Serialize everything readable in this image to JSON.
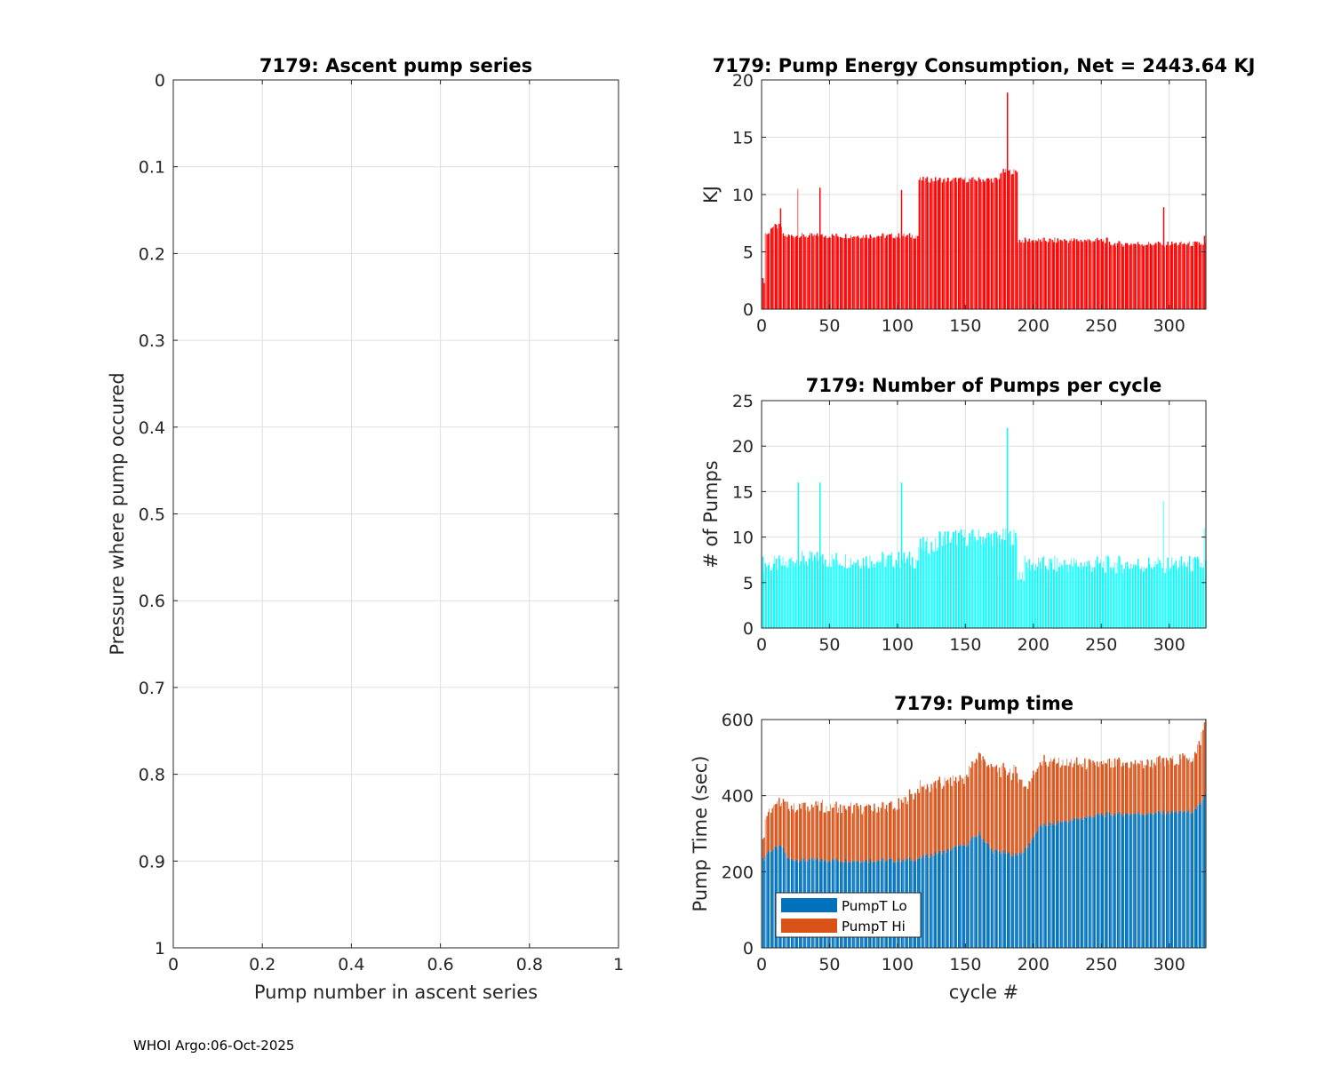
{
  "footer": "WHOI Argo:06-Oct-2025",
  "colors": {
    "energy": "#ff0000",
    "pumps": "#00ffff",
    "lo": "#0072bd",
    "hi": "#d95319"
  },
  "chart_data": [
    {
      "id": "ascent",
      "type": "scatter",
      "title": "7179: Ascent pump series",
      "xlabel": "Pump number in ascent series",
      "ylabel": "Pressure where pump occured",
      "xlim": [
        0,
        1
      ],
      "ylim": [
        0,
        1
      ],
      "y_reversed": true,
      "xticks": [
        "0",
        "0.2",
        "0.4",
        "0.6",
        "0.8",
        "1"
      ],
      "yticks": [
        "0",
        "0.1",
        "0.2",
        "0.3",
        "0.4",
        "0.5",
        "0.6",
        "0.7",
        "0.8",
        "0.9",
        "1"
      ],
      "grid": true,
      "points": []
    },
    {
      "id": "energy",
      "type": "bar",
      "title": "7179: Pump Energy Consumption,  Net = 2443.64 KJ",
      "xlabel": "",
      "ylabel": "KJ",
      "xlim": [
        0,
        327
      ],
      "ylim": [
        0,
        20
      ],
      "xticks": [
        "0",
        "50",
        "100",
        "150",
        "200",
        "250",
        "300"
      ],
      "yticks": [
        "0",
        "5",
        "10",
        "15",
        "20"
      ],
      "grid": true,
      "segments": [
        {
          "from": 1,
          "to": 2,
          "value": 2.5
        },
        {
          "from": 3,
          "to": 6,
          "value": 6.6
        },
        {
          "from": 7,
          "to": 15,
          "value": 7.2
        },
        {
          "from": 16,
          "to": 115,
          "value": 6.4
        },
        {
          "from": 116,
          "to": 175,
          "value": 11.3
        },
        {
          "from": 176,
          "to": 188,
          "value": 12.0
        },
        {
          "from": 189,
          "to": 255,
          "value": 6.0
        },
        {
          "from": 256,
          "to": 327,
          "value": 5.7
        }
      ],
      "spikes": [
        {
          "x": 14,
          "value": 8.8
        },
        {
          "x": 27,
          "value": 10.5
        },
        {
          "x": 43,
          "value": 10.6
        },
        {
          "x": 103,
          "value": 10.4
        },
        {
          "x": 181,
          "value": 18.9
        },
        {
          "x": 296,
          "value": 8.9
        },
        {
          "x": 326,
          "value": 6.4
        }
      ]
    },
    {
      "id": "pumps",
      "type": "bar",
      "title": "7179: Number of Pumps per cycle",
      "xlabel": "",
      "ylabel": "# of Pumps",
      "xlim": [
        0,
        327
      ],
      "ylim": [
        0,
        25
      ],
      "xticks": [
        "0",
        "50",
        "100",
        "150",
        "200",
        "250",
        "300"
      ],
      "yticks": [
        "0",
        "5",
        "10",
        "15",
        "20",
        "25"
      ],
      "grid": true,
      "segments": [
        {
          "from": 1,
          "to": 10,
          "value": 7
        },
        {
          "from": 11,
          "to": 20,
          "value": 7
        },
        {
          "from": 21,
          "to": 115,
          "value": 7.5
        },
        {
          "from": 116,
          "to": 130,
          "value": 9
        },
        {
          "from": 131,
          "to": 188,
          "value": 10
        },
        {
          "from": 189,
          "to": 193,
          "value": 6
        },
        {
          "from": 194,
          "to": 327,
          "value": 7
        }
      ],
      "spikes": [
        {
          "x": 27,
          "value": 16
        },
        {
          "x": 43,
          "value": 16
        },
        {
          "x": 103,
          "value": 16
        },
        {
          "x": 181,
          "value": 22
        },
        {
          "x": 296,
          "value": 14
        },
        {
          "x": 326,
          "value": 11
        }
      ]
    },
    {
      "id": "pumptime",
      "type": "bar",
      "stacked": true,
      "title": "7179: Pump time",
      "xlabel": "cycle #",
      "ylabel": "Pump Time (sec)",
      "xlim": [
        0,
        327
      ],
      "ylim": [
        0,
        600
      ],
      "xticks": [
        "0",
        "50",
        "100",
        "150",
        "200",
        "250",
        "300"
      ],
      "yticks": [
        "0",
        "200",
        "400",
        "600"
      ],
      "grid": true,
      "legend": {
        "position": "bottom-left",
        "entries": [
          "PumpT Lo",
          "PumpT Hi"
        ]
      },
      "series": [
        {
          "name": "PumpT Lo",
          "points": [
            [
              1,
              230
            ],
            [
              5,
              255
            ],
            [
              15,
              265
            ],
            [
              20,
              232
            ],
            [
              60,
              230
            ],
            [
              100,
              230
            ],
            [
              116,
              235
            ],
            [
              150,
              270
            ],
            [
              160,
              300
            ],
            [
              170,
              255
            ],
            [
              188,
              245
            ],
            [
              195,
              260
            ],
            [
              205,
              320
            ],
            [
              250,
              350
            ],
            [
              300,
              355
            ],
            [
              320,
              360
            ],
            [
              327,
              405
            ]
          ]
        },
        {
          "name": "PumpT Hi",
          "points": [
            [
              1,
              60
            ],
            [
              5,
              115
            ],
            [
              15,
              115
            ],
            [
              20,
              140
            ],
            [
              60,
              140
            ],
            [
              100,
              140
            ],
            [
              116,
              185
            ],
            [
              150,
              175
            ],
            [
              160,
              210
            ],
            [
              170,
              215
            ],
            [
              188,
              215
            ],
            [
              195,
              160
            ],
            [
              205,
              170
            ],
            [
              250,
              130
            ],
            [
              300,
              135
            ],
            [
              320,
              145
            ],
            [
              327,
              195
            ]
          ]
        }
      ]
    }
  ]
}
